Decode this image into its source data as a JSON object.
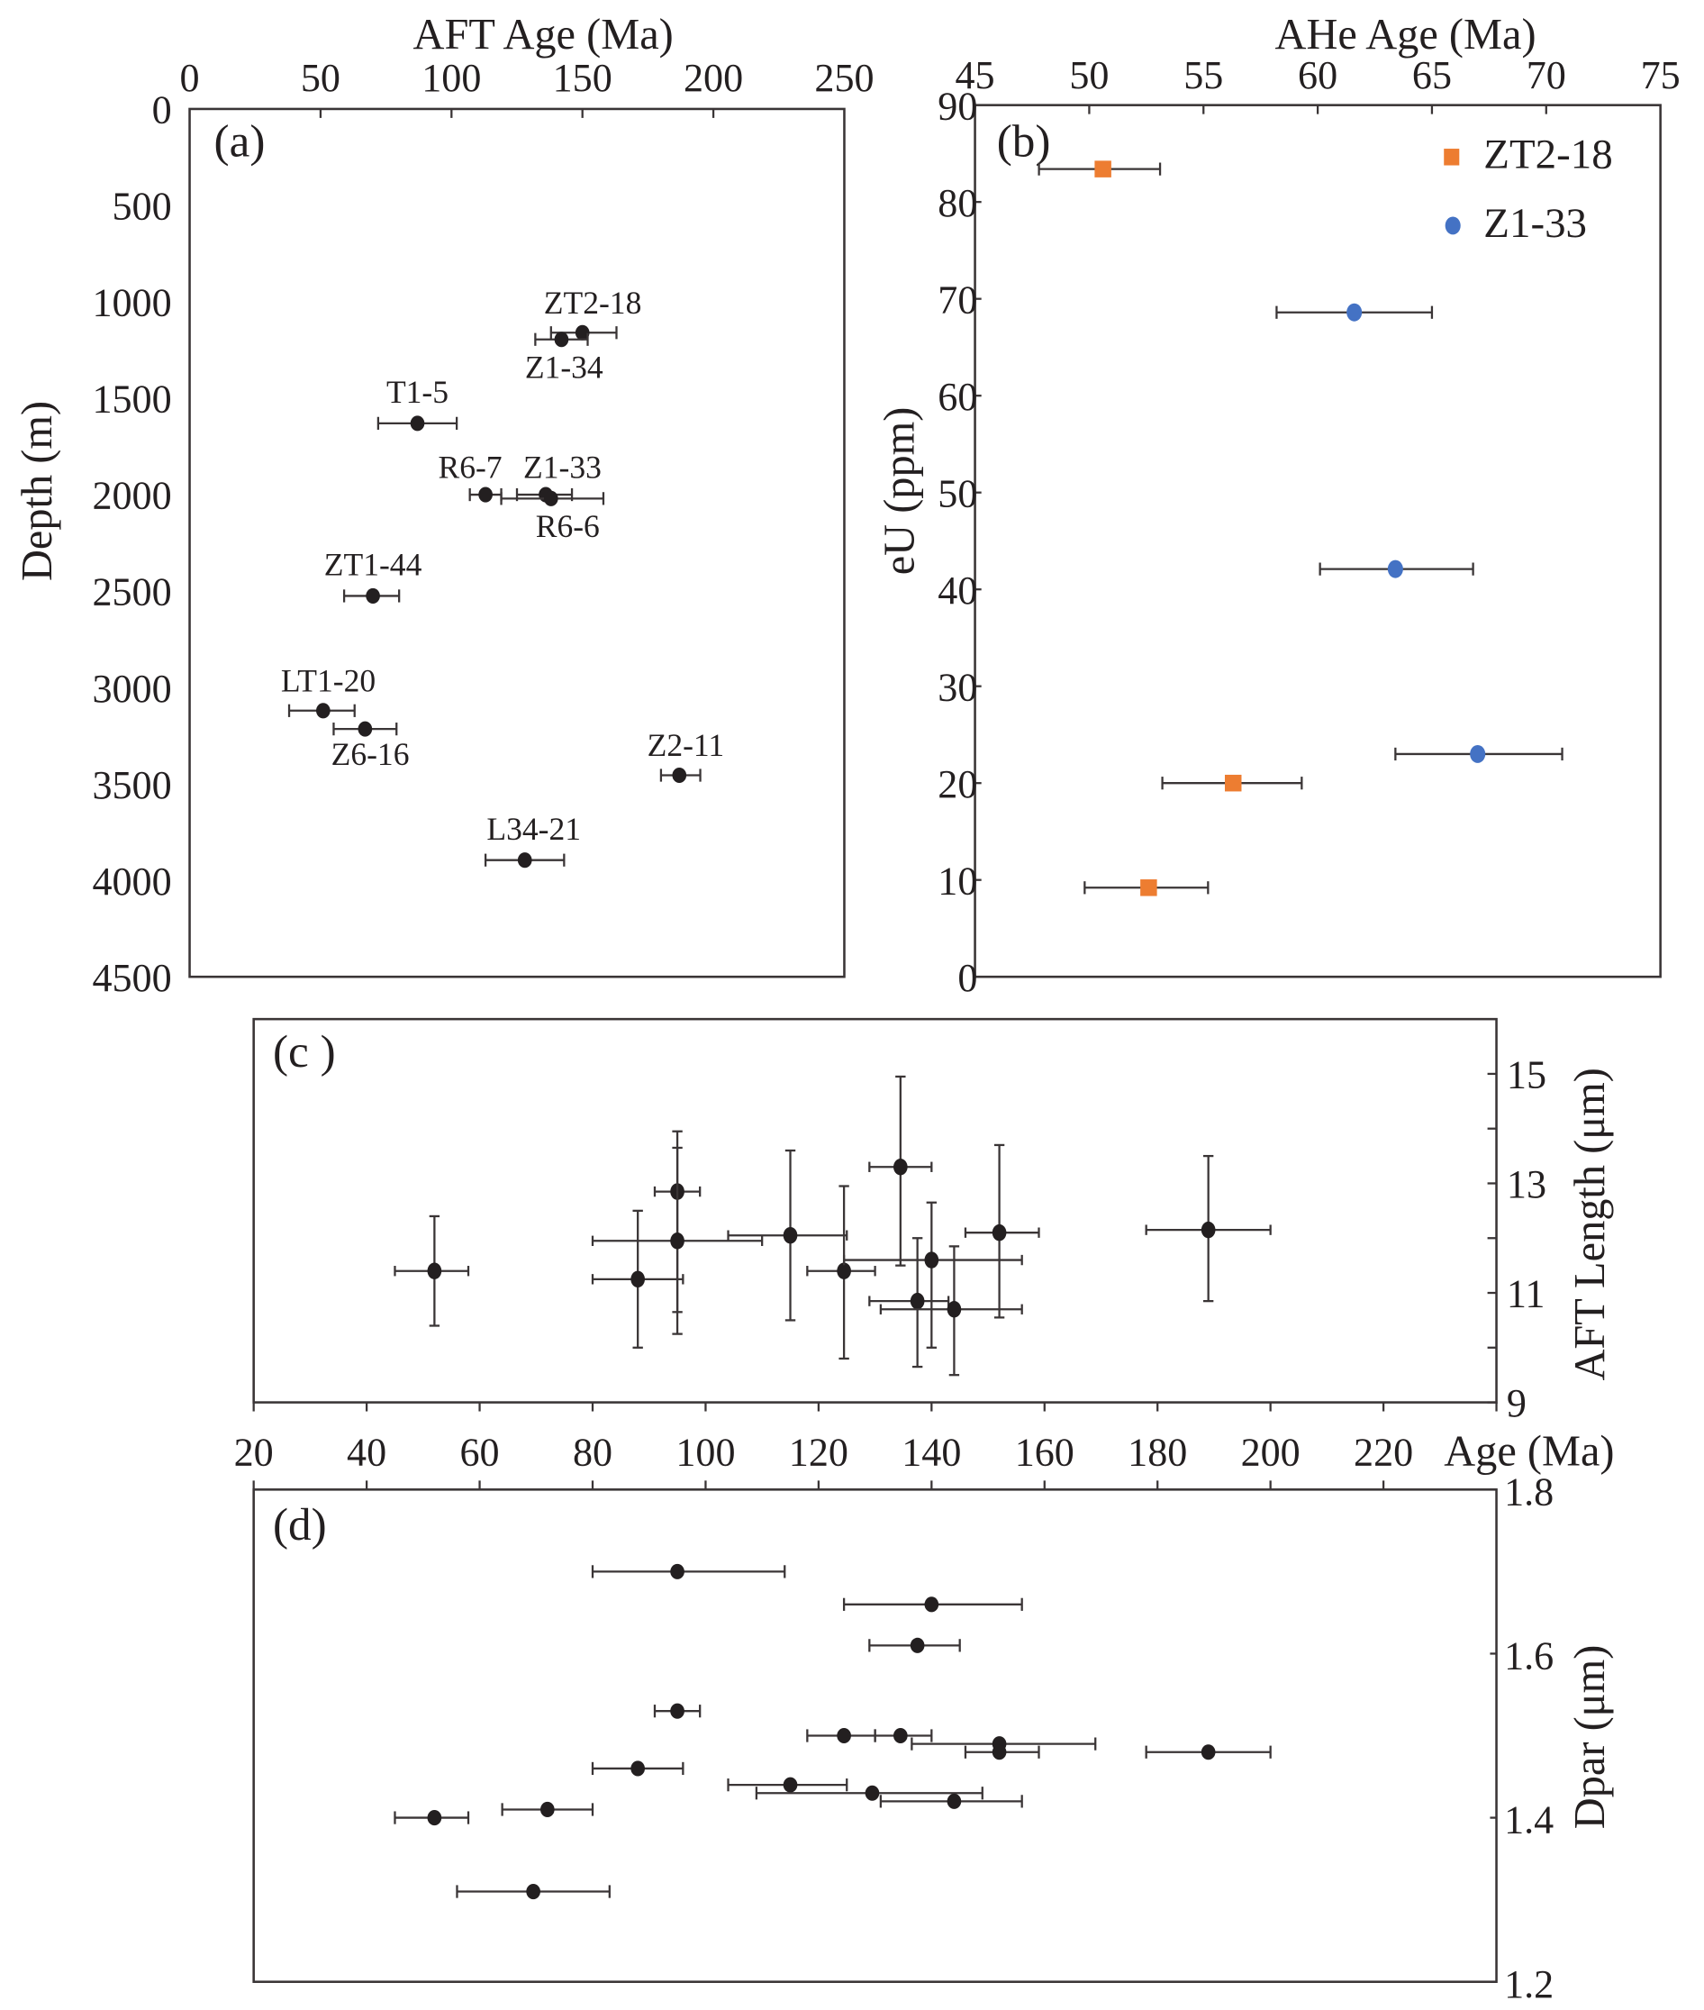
{
  "chart_data": [
    {
      "id": "a",
      "type": "scatter",
      "panel_label": "(a)",
      "title": "",
      "xlabel": "AFT Age (Ma)",
      "ylabel": "Depth (m)",
      "xlim": [
        0,
        250
      ],
      "ylim": [
        4500,
        0
      ],
      "x_ticks": [
        0,
        50,
        100,
        150,
        200,
        250
      ],
      "y_ticks": [
        0,
        500,
        1000,
        1500,
        2000,
        2500,
        3000,
        3500,
        4000,
        4500
      ],
      "x_axis_position": "top",
      "grid": false,
      "points": [
        {
          "label": "ZT2-18",
          "x": 150,
          "y": 1160,
          "xmin": 138,
          "xmax": 163,
          "label_pos": "above"
        },
        {
          "label": "Z1-34",
          "x": 142,
          "y": 1195,
          "xmin": 132,
          "xmax": 152,
          "label_pos": "below"
        },
        {
          "label": "T1-5",
          "x": 87,
          "y": 1630,
          "xmin": 72,
          "xmax": 102,
          "label_pos": "above"
        },
        {
          "label": "R6-7",
          "x": 113,
          "y": 2000,
          "xmin": 107,
          "xmax": 119,
          "label_pos": "above-left"
        },
        {
          "label": "Z1-33",
          "x": 136,
          "y": 2000,
          "xmin": 125,
          "xmax": 146,
          "label_pos": "above"
        },
        {
          "label": "R6-6",
          "x": 138,
          "y": 2020,
          "xmin": 119,
          "xmax": 158,
          "label_pos": "below"
        },
        {
          "label": "ZT1-44",
          "x": 70,
          "y": 2525,
          "xmin": 59,
          "xmax": 80,
          "label_pos": "above"
        },
        {
          "label": "LT1-20",
          "x": 51,
          "y": 3120,
          "xmin": 38,
          "xmax": 63,
          "label_pos": "above"
        },
        {
          "label": "Z6-16",
          "x": 67,
          "y": 3215,
          "xmin": 55,
          "xmax": 79,
          "label_pos": "below"
        },
        {
          "label": "Z2-11",
          "x": 187,
          "y": 3455,
          "xmin": 180,
          "xmax": 195,
          "label_pos": "above"
        },
        {
          "label": "L34-21",
          "x": 128,
          "y": 3895,
          "xmin": 113,
          "xmax": 143,
          "label_pos": "above"
        }
      ]
    },
    {
      "id": "b",
      "type": "scatter",
      "panel_label": "(b)",
      "title": "",
      "xlabel": "AHe Age (Ma)",
      "ylabel": "eU (ppm)",
      "xlim": [
        45,
        75
      ],
      "ylim": [
        0,
        90
      ],
      "x_ticks": [
        45,
        50,
        55,
        60,
        65,
        70,
        75
      ],
      "y_ticks": [
        0,
        10,
        20,
        30,
        40,
        50,
        60,
        70,
        80,
        90
      ],
      "x_axis_position": "top",
      "grid": false,
      "legend_position": "top-right",
      "series": [
        {
          "name": "ZT2-18",
          "marker": "square",
          "color": "#ed7d31",
          "points": [
            {
              "x": 50.6,
              "y": 83.4,
              "xmin": 47.8,
              "xmax": 53.1
            },
            {
              "x": 56.3,
              "y": 20.0,
              "xmin": 53.2,
              "xmax": 59.3
            },
            {
              "x": 52.6,
              "y": 9.2,
              "xmin": 49.8,
              "xmax": 55.2
            }
          ]
        },
        {
          "name": "Z1-33",
          "marker": "circle",
          "color": "#4472c4",
          "points": [
            {
              "x": 61.6,
              "y": 68.6,
              "xmin": 58.2,
              "xmax": 65.0
            },
            {
              "x": 63.4,
              "y": 42.1,
              "xmin": 60.1,
              "xmax": 66.8
            },
            {
              "x": 67.0,
              "y": 23.0,
              "xmin": 63.4,
              "xmax": 70.7
            }
          ]
        }
      ]
    },
    {
      "id": "c",
      "type": "scatter",
      "panel_label": "(c )",
      "title": "",
      "xlabel": "Age (Ma)",
      "ylabel": "AFT Length (μm)",
      "xlim": [
        20,
        240
      ],
      "ylim": [
        9,
        16
      ],
      "x_ticks": [
        20,
        40,
        60,
        80,
        100,
        120,
        140,
        160,
        180,
        200,
        220
      ],
      "y_ticks": [
        9,
        11,
        13,
        15
      ],
      "y_minor_ticks": [
        10,
        12,
        14
      ],
      "y_axis_position": "right",
      "grid": false,
      "points": [
        {
          "x": 52,
          "y": 11.4,
          "xmin": 45,
          "xmax": 58,
          "ymin": 10.4,
          "ymax": 12.4
        },
        {
          "x": 88,
          "y": 11.25,
          "xmin": 80,
          "xmax": 96,
          "ymin": 10.0,
          "ymax": 12.5
        },
        {
          "x": 95,
          "y": 12.85,
          "xmin": 91,
          "xmax": 99,
          "ymin": 10.65,
          "ymax": 13.95
        },
        {
          "x": 95,
          "y": 11.95,
          "xmin": 80,
          "xmax": 110,
          "ymin": 10.25,
          "ymax": 13.65
        },
        {
          "x": 115,
          "y": 12.05,
          "xmin": 104,
          "xmax": 125,
          "ymin": 10.5,
          "ymax": 13.6
        },
        {
          "x": 124.5,
          "y": 11.4,
          "xmin": 118,
          "xmax": 130,
          "ymin": 9.8,
          "ymax": 12.95
        },
        {
          "x": 134.5,
          "y": 13.3,
          "xmin": 129,
          "xmax": 140,
          "ymin": 11.5,
          "ymax": 14.95
        },
        {
          "x": 140,
          "y": 11.6,
          "xmin": 124.5,
          "xmax": 156,
          "ymin": 10.0,
          "ymax": 12.65
        },
        {
          "x": 137.5,
          "y": 10.85,
          "xmin": 129,
          "xmax": 143,
          "ymin": 9.65,
          "ymax": 12.0
        },
        {
          "x": 144,
          "y": 10.7,
          "xmin": 131,
          "xmax": 156,
          "ymin": 9.5,
          "ymax": 11.85
        },
        {
          "x": 152,
          "y": 12.1,
          "xmin": 146,
          "xmax": 159,
          "ymin": 10.55,
          "ymax": 13.7
        },
        {
          "x": 189,
          "y": 12.15,
          "xmin": 178,
          "xmax": 200,
          "ymin": 10.85,
          "ymax": 13.5
        }
      ]
    },
    {
      "id": "d",
      "type": "scatter",
      "panel_label": "(d)",
      "title": "",
      "xlabel": "Age (Ma)",
      "ylabel": "Dpar (μm)",
      "xlim": [
        20,
        240
      ],
      "ylim": [
        1.2,
        1.8
      ],
      "x_ticks": [
        20,
        40,
        60,
        80,
        100,
        120,
        140,
        160,
        180,
        200,
        220
      ],
      "y_ticks": [
        1.2,
        1.4,
        1.6,
        1.8
      ],
      "y_axis_position": "right",
      "grid": false,
      "points": [
        {
          "x": 95,
          "y": 1.7,
          "xmin": 80,
          "xmax": 114
        },
        {
          "x": 140,
          "y": 1.66,
          "xmin": 124.5,
          "xmax": 156
        },
        {
          "x": 137.5,
          "y": 1.61,
          "xmin": 129,
          "xmax": 145
        },
        {
          "x": 95,
          "y": 1.53,
          "xmin": 91,
          "xmax": 99
        },
        {
          "x": 124.5,
          "y": 1.5,
          "xmin": 118,
          "xmax": 130
        },
        {
          "x": 134.5,
          "y": 1.5,
          "xmin": 130,
          "xmax": 140
        },
        {
          "x": 152,
          "y": 1.49,
          "xmin": 136.5,
          "xmax": 169
        },
        {
          "x": 152,
          "y": 1.48,
          "xmin": 146,
          "xmax": 159
        },
        {
          "x": 189,
          "y": 1.48,
          "xmin": 178,
          "xmax": 200
        },
        {
          "x": 88,
          "y": 1.46,
          "xmin": 80,
          "xmax": 96
        },
        {
          "x": 115,
          "y": 1.44,
          "xmin": 104,
          "xmax": 125
        },
        {
          "x": 129.5,
          "y": 1.43,
          "xmin": 109,
          "xmax": 149
        },
        {
          "x": 144,
          "y": 1.42,
          "xmin": 131,
          "xmax": 156
        },
        {
          "x": 72,
          "y": 1.41,
          "xmin": 64,
          "xmax": 80
        },
        {
          "x": 52,
          "y": 1.4,
          "xmin": 45,
          "xmax": 58
        },
        {
          "x": 69.5,
          "y": 1.31,
          "xmin": 56,
          "xmax": 83
        }
      ]
    }
  ]
}
